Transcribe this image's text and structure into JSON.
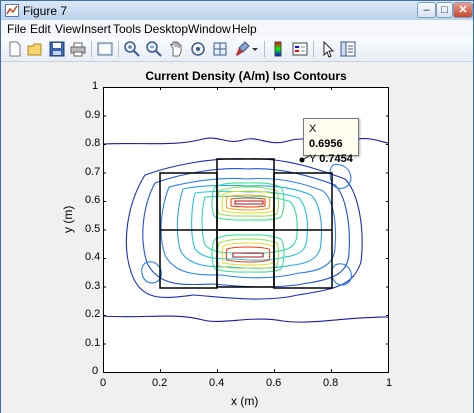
{
  "window": {
    "title": "Figure 7"
  },
  "menu": [
    "File",
    "Edit",
    "View",
    "Insert",
    "Tools",
    "Desktop",
    "Window",
    "Help"
  ],
  "toolbar_icons": [
    "new-figure-icon",
    "open-file-icon",
    "save-icon",
    "print-icon",
    "print-preview-icon",
    "zoom-in-icon",
    "zoom-out-icon",
    "pan-icon",
    "rotate-3d-icon",
    "data-cursor-icon",
    "brush-icon",
    "brush-dropdown-icon",
    "colorbar-icon",
    "legend-icon",
    "edit-plot-icon",
    "property-editor-icon"
  ],
  "plot": {
    "title": "Current Density (A/m) Iso Contours",
    "xlabel": "x (m)",
    "ylabel": "y (m)",
    "xticks": [
      "0",
      "0.2",
      "0.4",
      "0.6",
      "0.8",
      "1"
    ],
    "yticks": [
      "0",
      "0.1",
      "0.2",
      "0.3",
      "0.4",
      "0.5",
      "0.6",
      "0.7",
      "0.8",
      "0.9",
      "1"
    ]
  },
  "datatip": {
    "x_label": "X",
    "x_value": "0.6956",
    "y_label": "Y",
    "y_value": "0.7454"
  },
  "chart_data": {
    "type": "contour",
    "title": "Current Density (A/m) Iso Contours",
    "xlabel": "x (m)",
    "ylabel": "y (m)",
    "xlim": [
      0,
      1
    ],
    "ylim": [
      0,
      1
    ],
    "grid": false,
    "datatip": {
      "x": 0.6956,
      "y": 0.7454
    }
  }
}
